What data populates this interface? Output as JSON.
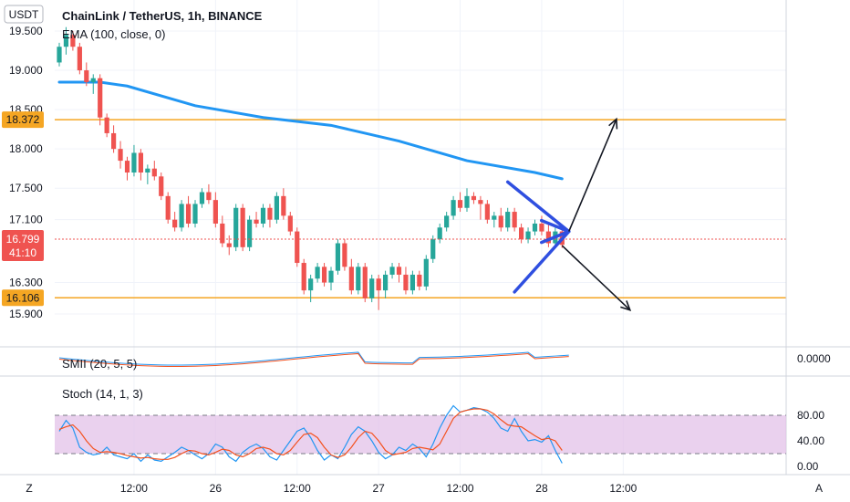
{
  "header": {
    "currency": "USDT",
    "title": "ChainLink / TetherUS, 1h, BINANCE",
    "indicator": "EMA (100, close, 0)"
  },
  "price_badges": {
    "last_price": "16.799",
    "countdown": "41:10"
  },
  "panes": {
    "smii_label": "SMII (20, 5, 5)",
    "smii_value": "0.0000",
    "stoch_label": "Stoch (14, 1, 3)"
  },
  "footer": {
    "left_button": "Z",
    "right_button": "A"
  },
  "colors": {
    "up": "#26a69a",
    "down": "#ef5350",
    "ema": "#2196f3",
    "level": "#f5a623",
    "triangle": "#2f4fe0",
    "stoch_k": "#2196f3",
    "stoch_d": "#f4511e",
    "stoch_band": "#e1bee7"
  },
  "chart_data": {
    "type": "candlestick",
    "symbol": "ChainLink / TetherUS",
    "timeframe": "1h",
    "exchange": "BINANCE",
    "price_axis_ticks": [
      "19.500",
      "19.000",
      "18.500",
      "18.000",
      "17.500",
      "17.100",
      "16.300",
      "15.900"
    ],
    "time_axis_ticks": [
      "12:00",
      "26",
      "12:00",
      "27",
      "12:00",
      "28",
      "12:00"
    ],
    "time_axis_hours": [
      12,
      24,
      36,
      48,
      60,
      72,
      84
    ],
    "last_price": 16.799,
    "horizontal_levels": [
      {
        "label": "18.372",
        "value": 18.372
      },
      {
        "label": "16.106",
        "value": 16.106
      }
    ],
    "candles_ohlc": [
      [
        19.1,
        19.35,
        19.05,
        19.3
      ],
      [
        19.3,
        19.55,
        19.2,
        19.45
      ],
      [
        19.45,
        19.5,
        19.25,
        19.3
      ],
      [
        19.3,
        19.35,
        18.95,
        19.0
      ],
      [
        19.0,
        19.1,
        18.8,
        18.85
      ],
      [
        18.85,
        18.95,
        18.7,
        18.9
      ],
      [
        18.9,
        18.95,
        18.3,
        18.4
      ],
      [
        18.4,
        18.45,
        18.15,
        18.2
      ],
      [
        18.2,
        18.3,
        17.95,
        18.0
      ],
      [
        18.0,
        18.1,
        17.75,
        17.85
      ],
      [
        17.85,
        17.9,
        17.6,
        17.7
      ],
      [
        17.7,
        18.05,
        17.65,
        17.95
      ],
      [
        17.95,
        18.0,
        17.6,
        17.7
      ],
      [
        17.7,
        17.8,
        17.55,
        17.75
      ],
      [
        17.75,
        17.85,
        17.6,
        17.65
      ],
      [
        17.65,
        17.7,
        17.35,
        17.4
      ],
      [
        17.4,
        17.45,
        17.05,
        17.1
      ],
      [
        17.1,
        17.2,
        16.95,
        17.0
      ],
      [
        17.0,
        17.35,
        16.95,
        17.3
      ],
      [
        17.3,
        17.4,
        17.0,
        17.05
      ],
      [
        17.05,
        17.35,
        17.0,
        17.3
      ],
      [
        17.3,
        17.5,
        17.25,
        17.45
      ],
      [
        17.45,
        17.55,
        17.3,
        17.35
      ],
      [
        17.35,
        17.45,
        17.0,
        17.05
      ],
      [
        17.05,
        17.15,
        16.75,
        16.8
      ],
      [
        16.8,
        16.9,
        16.65,
        16.75
      ],
      [
        16.75,
        17.3,
        16.7,
        17.25
      ],
      [
        17.25,
        17.3,
        16.7,
        16.75
      ],
      [
        16.75,
        17.15,
        16.7,
        17.1
      ],
      [
        17.1,
        17.2,
        17.0,
        17.05
      ],
      [
        17.05,
        17.3,
        17.0,
        17.25
      ],
      [
        17.25,
        17.3,
        17.0,
        17.1
      ],
      [
        17.1,
        17.45,
        17.05,
        17.4
      ],
      [
        17.4,
        17.5,
        17.1,
        17.15
      ],
      [
        17.15,
        17.2,
        16.9,
        16.95
      ],
      [
        16.95,
        17.0,
        16.5,
        16.55
      ],
      [
        16.55,
        16.6,
        16.15,
        16.2
      ],
      [
        16.2,
        16.4,
        16.05,
        16.35
      ],
      [
        16.35,
        16.55,
        16.3,
        16.5
      ],
      [
        16.5,
        16.55,
        16.25,
        16.3
      ],
      [
        16.3,
        16.5,
        16.2,
        16.45
      ],
      [
        16.45,
        16.85,
        16.4,
        16.8
      ],
      [
        16.8,
        16.85,
        16.45,
        16.5
      ],
      [
        16.5,
        16.6,
        16.15,
        16.2
      ],
      [
        16.2,
        16.55,
        16.15,
        16.5
      ],
      [
        16.5,
        16.55,
        16.05,
        16.1
      ],
      [
        16.1,
        16.4,
        16.05,
        16.35
      ],
      [
        16.35,
        16.4,
        15.95,
        16.2
      ],
      [
        16.2,
        16.45,
        16.1,
        16.4
      ],
      [
        16.4,
        16.55,
        16.35,
        16.5
      ],
      [
        16.5,
        16.55,
        16.3,
        16.4
      ],
      [
        16.4,
        16.5,
        16.15,
        16.2
      ],
      [
        16.2,
        16.45,
        16.15,
        16.4
      ],
      [
        16.4,
        16.45,
        16.2,
        16.25
      ],
      [
        16.25,
        16.65,
        16.2,
        16.6
      ],
      [
        16.6,
        16.9,
        16.55,
        16.85
      ],
      [
        16.85,
        17.05,
        16.8,
        17.0
      ],
      [
        17.0,
        17.2,
        16.95,
        17.15
      ],
      [
        17.15,
        17.4,
        17.1,
        17.35
      ],
      [
        17.35,
        17.45,
        17.2,
        17.25
      ],
      [
        17.25,
        17.5,
        17.2,
        17.4
      ],
      [
        17.4,
        17.45,
        17.3,
        17.35
      ],
      [
        17.35,
        17.4,
        17.1,
        17.3
      ],
      [
        17.3,
        17.35,
        17.05,
        17.1
      ],
      [
        17.1,
        17.2,
        17.0,
        17.15
      ],
      [
        17.15,
        17.25,
        16.95,
        17.0
      ],
      [
        17.0,
        17.25,
        16.95,
        17.2
      ],
      [
        17.2,
        17.25,
        16.95,
        17.0
      ],
      [
        17.0,
        17.05,
        16.8,
        16.85
      ],
      [
        16.85,
        17.0,
        16.8,
        16.95
      ],
      [
        16.95,
        17.1,
        16.9,
        17.05
      ],
      [
        17.05,
        17.15,
        16.9,
        16.95
      ],
      [
        16.95,
        17.05,
        16.75,
        16.8
      ],
      [
        16.8,
        17.0,
        16.75,
        16.95
      ],
      [
        16.95,
        16.98,
        16.74,
        16.78
      ]
    ],
    "indicators": [
      {
        "name": "EMA (100, close, 0)",
        "points": [
          [
            0,
            18.85
          ],
          [
            6,
            18.85
          ],
          [
            10,
            18.8
          ],
          [
            20,
            18.55
          ],
          [
            30,
            18.4
          ],
          [
            40,
            18.3
          ],
          [
            50,
            18.1
          ],
          [
            60,
            17.85
          ],
          [
            70,
            17.7
          ],
          [
            74,
            17.62
          ]
        ]
      },
      {
        "name": "SMII (20, 5, 5)",
        "value_label": "0.0000"
      },
      {
        "name": "Stoch (14, 1, 3)",
        "ticks": [
          "80.00",
          "40.00",
          "0.00"
        ],
        "band": [
          20,
          80
        ],
        "k": [
          55,
          72,
          60,
          30,
          22,
          18,
          20,
          30,
          18,
          15,
          12,
          20,
          8,
          18,
          10,
          8,
          15,
          22,
          30,
          25,
          18,
          12,
          20,
          35,
          30,
          15,
          8,
          22,
          30,
          35,
          28,
          15,
          10,
          25,
          40,
          55,
          60,
          45,
          25,
          10,
          18,
          12,
          30,
          50,
          62,
          55,
          40,
          22,
          12,
          18,
          30,
          25,
          35,
          28,
          15,
          35,
          60,
          80,
          95,
          85,
          88,
          92,
          90,
          85,
          75,
          60,
          55,
          75,
          55,
          40,
          42,
          38,
          48,
          25,
          5
        ],
        "d": [
          58,
          62,
          65,
          55,
          40,
          28,
          22,
          23,
          22,
          20,
          17,
          15,
          13,
          14,
          12,
          11,
          11,
          14,
          20,
          25,
          24,
          20,
          18,
          22,
          27,
          25,
          18,
          15,
          20,
          28,
          30,
          27,
          20,
          18,
          25,
          38,
          50,
          52,
          45,
          30,
          18,
          14,
          18,
          30,
          45,
          55,
          52,
          40,
          25,
          18,
          20,
          22,
          28,
          30,
          28,
          26,
          35,
          55,
          75,
          85,
          88,
          90,
          90,
          88,
          82,
          73,
          65,
          63,
          62,
          55,
          48,
          42,
          44,
          40,
          25
        ]
      }
    ],
    "annotations": {
      "triangle_price_points": [
        [
          66,
          17.58
        ],
        [
          75,
          16.95
        ],
        [
          67,
          16.18
        ]
      ],
      "arrows": [
        {
          "from": [
            75,
            16.95
          ],
          "to": [
            82,
            18.38
          ]
        },
        {
          "from": [
            74,
            16.77
          ],
          "to": [
            84,
            15.95
          ]
        }
      ]
    },
    "ylim": [
      15.75,
      19.75
    ]
  }
}
